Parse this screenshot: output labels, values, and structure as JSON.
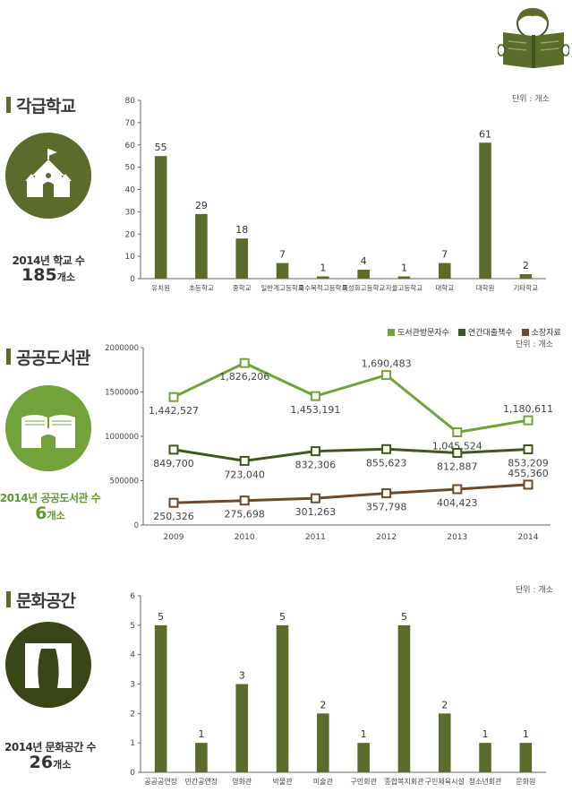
{
  "colors": {
    "dark_olive": "#5a6b2c",
    "light_green": "#72a33b",
    "dark_green": "#3f5620",
    "brown": "#6b4a2d",
    "text_green": "#5f9a30"
  },
  "header_icon": "person-reading-book-icon",
  "sections": {
    "schools": {
      "title": "각급학교",
      "unit": "단위 : 개소",
      "icon": "school-building-icon",
      "stat_label": "2014년 학교 수",
      "stat_value": "185",
      "stat_unit": "개소"
    },
    "libraries": {
      "title": "공공도서관",
      "unit": "단위 : 개소",
      "icon": "library-book-icon",
      "stat_label": "2014년 공공도서관 수",
      "stat_value": "6",
      "stat_unit": "개소"
    },
    "culture": {
      "title": "문화공간",
      "unit": "단위 : 개소",
      "icon": "stage-curtain-icon",
      "stat_label": "2014년 문화공간 수",
      "stat_value": "26",
      "stat_unit": "개소"
    }
  },
  "chart_data": [
    {
      "type": "bar",
      "categories": [
        "유치원",
        "초등학교",
        "중학교",
        "일반계고등학교",
        "특수목적고등학교",
        "특성화고등학교",
        "자율고등학교",
        "대학교",
        "대학원",
        "기타학교"
      ],
      "values": [
        55,
        29,
        18,
        7,
        1,
        4,
        1,
        7,
        61,
        2
      ],
      "value_labels": [
        "55",
        "29",
        "18",
        "7",
        "1",
        "4",
        "1",
        "7",
        "61",
        "2"
      ],
      "ylim": [
        0,
        80
      ],
      "yticks": [
        "0",
        "10",
        "20",
        "30",
        "40",
        "50",
        "60",
        "70",
        "80"
      ],
      "color": "#5a6b2c"
    },
    {
      "type": "line",
      "x": [
        "2009",
        "2010",
        "2011",
        "2012",
        "2013",
        "2014"
      ],
      "ylim": [
        0,
        2000000
      ],
      "yticks": [
        "0",
        "500000",
        "1000000",
        "1500000",
        "2000000"
      ],
      "series": [
        {
          "name": "도서관방문자수",
          "color": "#72a33b",
          "values": [
            1442527,
            1826206,
            1453191,
            1690483,
            1045524,
            1180611
          ],
          "labels": [
            "1,442,527",
            "1,826,206",
            "1,453,191",
            "1,690,483",
            "1,045,524",
            "1,180,611"
          ]
        },
        {
          "name": "연간대출책수",
          "color": "#3f5620",
          "values": [
            849700,
            723040,
            832306,
            855623,
            812887,
            853209
          ],
          "labels": [
            "849,700",
            "723,040",
            "832,306",
            "855,623",
            "812,887",
            "853,209"
          ]
        },
        {
          "name": "소장자료",
          "color": "#6b4a2d",
          "values": [
            250326,
            275698,
            301263,
            357798,
            404423,
            455360
          ],
          "labels": [
            "250,326",
            "275,698",
            "301,263",
            "357,798",
            "404,423",
            "455,360"
          ]
        }
      ],
      "legend_position": "top-right"
    },
    {
      "type": "bar",
      "categories": [
        "공공공연장",
        "민간공연장",
        "영화관",
        "박물관",
        "미술관",
        "구민회관",
        "종합복지회관",
        "구민체육시설",
        "청소년회관",
        "문화원"
      ],
      "values": [
        5,
        1,
        3,
        5,
        2,
        1,
        5,
        2,
        1,
        1
      ],
      "value_labels": [
        "5",
        "1",
        "3",
        "5",
        "2",
        "1",
        "5",
        "2",
        "1",
        "1"
      ],
      "ylim": [
        0,
        6
      ],
      "yticks": [
        "0",
        "1",
        "2",
        "3",
        "4",
        "5",
        "6"
      ],
      "color": "#5a6b2c"
    }
  ]
}
